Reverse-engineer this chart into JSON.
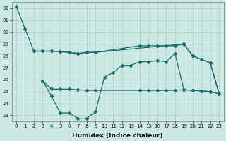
{
  "xlabel": "Humidex (Indice chaleur)",
  "xlim": [
    -0.5,
    23.5
  ],
  "ylim": [
    22.5,
    32.5
  ],
  "yticks": [
    23,
    24,
    25,
    26,
    27,
    28,
    29,
    30,
    31,
    32
  ],
  "xticks": [
    0,
    1,
    2,
    3,
    4,
    5,
    6,
    7,
    8,
    9,
    10,
    11,
    12,
    13,
    14,
    15,
    16,
    17,
    18,
    19,
    20,
    21,
    22,
    23
  ],
  "bg_color": "#cce8e4",
  "grid_color": "#aaccca",
  "line_color": "#1a6b6b",
  "line1_x": [
    0,
    1,
    2,
    3,
    4,
    5,
    6,
    7,
    8,
    9,
    19,
    20,
    21,
    22,
    23
  ],
  "line1_y": [
    32.2,
    30.3,
    28.4,
    28.4,
    28.4,
    28.35,
    28.3,
    28.2,
    28.3,
    28.3,
    29.0,
    28.0,
    27.7,
    27.4,
    24.8
  ],
  "line2_x": [
    2,
    3,
    4,
    5,
    6,
    7,
    8,
    9,
    14,
    15,
    16,
    17,
    18,
    19,
    20,
    21,
    22,
    23
  ],
  "line2_y": [
    28.4,
    28.4,
    28.4,
    28.35,
    28.3,
    28.2,
    28.3,
    28.3,
    28.85,
    28.85,
    28.85,
    28.85,
    28.85,
    29.0,
    28.0,
    27.7,
    27.4,
    24.8
  ],
  "line3_x": [
    3,
    4,
    5,
    6,
    7,
    8,
    9,
    10,
    11,
    12,
    13,
    14,
    15,
    16,
    17,
    18,
    19,
    20,
    21,
    22,
    23
  ],
  "line3_y": [
    25.9,
    24.6,
    23.2,
    23.2,
    22.75,
    22.75,
    23.3,
    26.2,
    26.6,
    27.2,
    27.2,
    27.5,
    27.5,
    27.6,
    27.5,
    28.2,
    25.15,
    25.1,
    25.05,
    25.0,
    24.8
  ],
  "line4_x": [
    3,
    4,
    5,
    6,
    7,
    8,
    9,
    14,
    15,
    16,
    17,
    18,
    19,
    20,
    21,
    22,
    23
  ],
  "line4_y": [
    25.9,
    25.2,
    25.2,
    25.2,
    25.15,
    25.1,
    25.1,
    25.1,
    25.1,
    25.1,
    25.1,
    25.1,
    25.15,
    25.1,
    25.05,
    25.0,
    24.8
  ],
  "marker": "D",
  "markersize": 2.0,
  "linewidth": 0.9
}
